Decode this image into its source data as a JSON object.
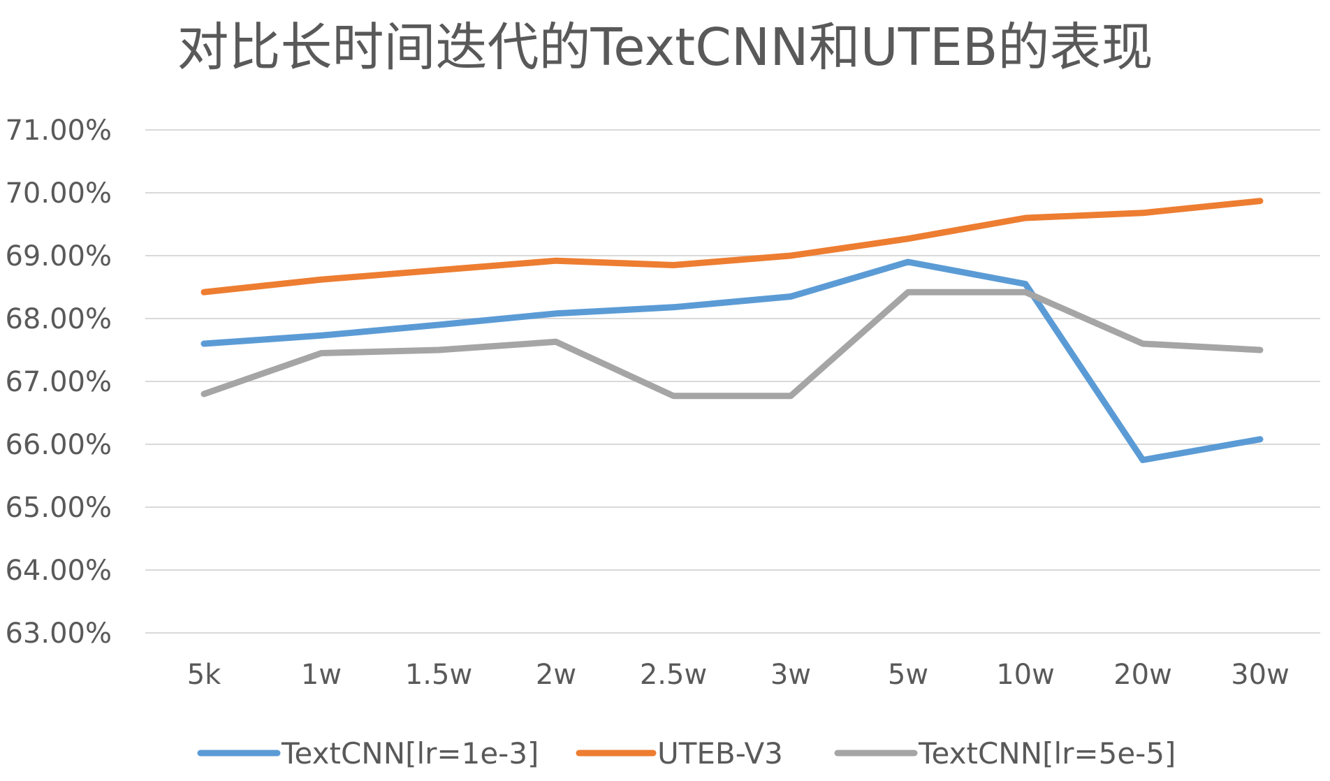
{
  "chart_data": {
    "type": "line",
    "title": "对比长时间迭代的TextCNN和UTEB的表现",
    "xlabel": "",
    "ylabel": "",
    "categories": [
      "5k",
      "1w",
      "1.5w",
      "2w",
      "2.5w",
      "3w",
      "5w",
      "10w",
      "20w",
      "30w"
    ],
    "ylim": [
      63,
      71
    ],
    "y_ticks": [
      {
        "value": 71,
        "label": "71.00%"
      },
      {
        "value": 70,
        "label": "70.00%"
      },
      {
        "value": 69,
        "label": "69.00%"
      },
      {
        "value": 68,
        "label": "68.00%"
      },
      {
        "value": 67,
        "label": "67.00%"
      },
      {
        "value": 66,
        "label": "66.00%"
      },
      {
        "value": 65,
        "label": "65.00%"
      },
      {
        "value": 64,
        "label": "64.00%"
      },
      {
        "value": 63,
        "label": "63.00%"
      }
    ],
    "grid": true,
    "legend_position": "bottom",
    "series": [
      {
        "name": "TextCNN[lr=1e-3]",
        "color": "#5b9bd5",
        "values": [
          67.6,
          67.73,
          67.9,
          68.08,
          68.18,
          68.35,
          68.9,
          68.55,
          65.75,
          66.08
        ]
      },
      {
        "name": "UTEB-V3",
        "color": "#ed7d31",
        "values": [
          68.42,
          68.62,
          68.77,
          68.92,
          68.85,
          69.0,
          69.27,
          69.6,
          69.68,
          69.87
        ]
      },
      {
        "name": "TextCNN[lr=5e-5]",
        "color": "#a5a5a5",
        "values": [
          66.8,
          67.45,
          67.5,
          67.63,
          66.77,
          66.77,
          68.42,
          68.42,
          67.6,
          67.5
        ]
      }
    ]
  }
}
